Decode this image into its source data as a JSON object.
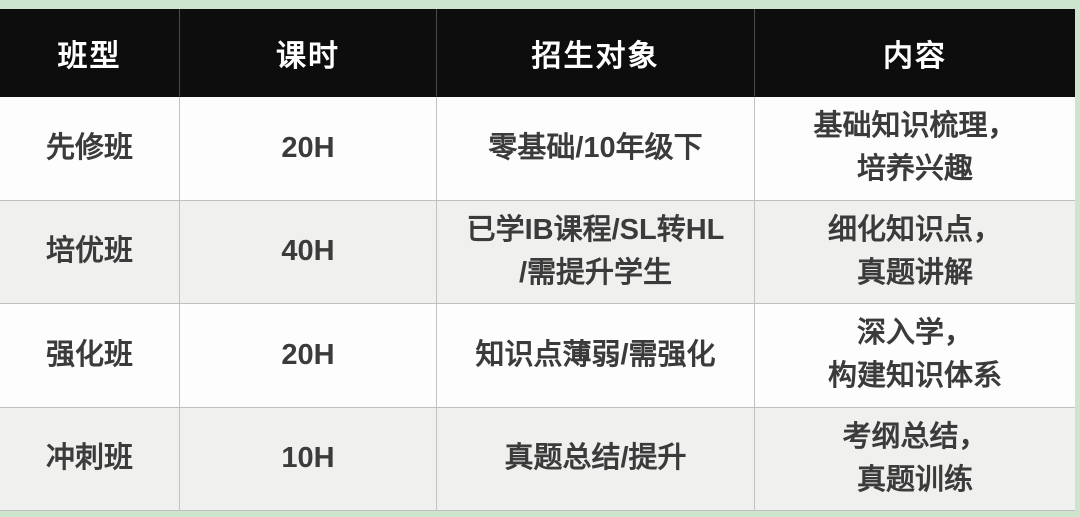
{
  "page": {
    "frame_color": "#cee5cd",
    "header_bg": "#0d0d0d",
    "header_text_color": "#ffffff",
    "row_alt_bg": "#f0f0ee",
    "grid_line_color": "#c2c2c2",
    "body_text_color": "#3b3b3b"
  },
  "table": {
    "columns": [
      "班型",
      "课时",
      "招生对象",
      "内容"
    ],
    "rows": [
      {
        "class_type": "先修班",
        "hours": "20H",
        "target": "零基础/10年级下",
        "content": "基础知识梳理，\n培养兴趣"
      },
      {
        "class_type": "培优班",
        "hours": "40H",
        "target": "已学IB课程/SL转HL\n/需提升学生",
        "content": "细化知识点，\n真题讲解"
      },
      {
        "class_type": "强化班",
        "hours": "20H",
        "target": "知识点薄弱/需强化",
        "content": "深入学，\n构建知识体系"
      },
      {
        "class_type": "冲刺班",
        "hours": "10H",
        "target": "真题总结/提升",
        "content": "考纲总结，\n真题训练"
      }
    ]
  },
  "chart_data": {
    "type": "table",
    "columns": [
      "班型",
      "课时",
      "招生对象",
      "内容"
    ],
    "rows": [
      [
        "先修班",
        "20H",
        "零基础/10年级下",
        "基础知识梳理，培养兴趣"
      ],
      [
        "培优班",
        "40H",
        "已学IB课程/SL转HL/需提升学生",
        "细化知识点，真题讲解"
      ],
      [
        "强化班",
        "20H",
        "知识点薄弱/需强化",
        "深入学，构建知识体系"
      ],
      [
        "冲刺班",
        "10H",
        "真题总结/提升",
        "考纲总结，真题训练"
      ]
    ]
  }
}
